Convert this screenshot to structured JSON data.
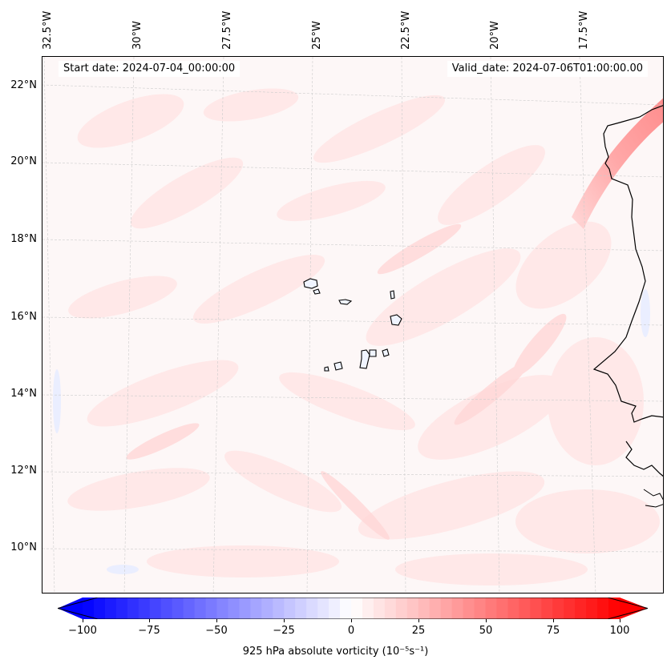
{
  "map": {
    "start_date": "Start date: 2024-07-04_00:00:00",
    "valid_date": "Valid_date: 2024-07-06T01:00:00.00",
    "longitude_labels": [
      "32.5°W",
      "30°W",
      "27.5°W",
      "25°W",
      "22.5°W",
      "20°W",
      "17.5°W"
    ],
    "latitude_labels": [
      "22°N",
      "20°N",
      "18°N",
      "16°N",
      "14°N",
      "12°N",
      "10°N"
    ],
    "field": "925 hPa absolute vorticity",
    "features": [
      "Cape Verde Islands",
      "West African coastline"
    ]
  },
  "colorbar": {
    "title": "925 hPa absolute vorticity (10⁻⁵s⁻¹)",
    "ticks": [
      "−100",
      "−75",
      "−50",
      "−25",
      "0",
      "25",
      "50",
      "75",
      "100"
    ],
    "min": -100,
    "max": 100,
    "levels": 48,
    "colors": {
      "negative": "#0000ff",
      "neutral": "#ffffff",
      "positive": "#ff0000"
    }
  }
}
